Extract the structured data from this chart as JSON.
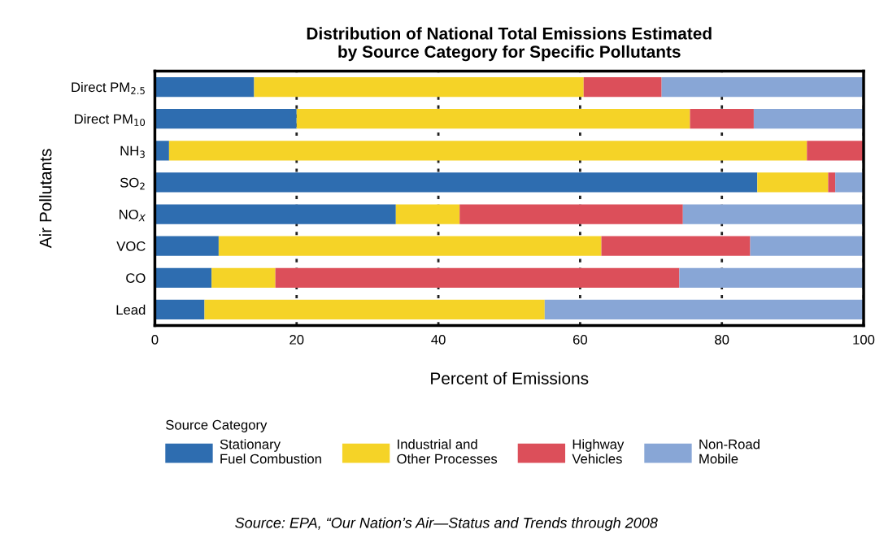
{
  "chart_data": {
    "type": "bar",
    "orientation": "horizontal",
    "stacked": true,
    "title": "Distribution of National Total Emissions Estimated\nby Source Category for Specific Pollutants",
    "xlabel": "Percent of Emissions",
    "ylabel": "Air Pollutants",
    "legend_title": "Source Category",
    "categories": [
      "Direct PM$_{2.5}$",
      "Direct PM$_{10}$",
      "NH$_{3}$",
      "SO$_{2}$",
      "NO$_{X}$",
      "VOC",
      "CO",
      "Lead"
    ],
    "series": [
      {
        "name": "Stationary\nFuel Combustion",
        "color": "#2e6db0",
        "values": [
          14,
          20,
          2,
          85,
          34,
          9,
          8,
          7
        ]
      },
      {
        "name": "Industrial and\nOther Processes",
        "color": "#f5d327",
        "values": [
          46.5,
          55.5,
          90,
          10,
          9,
          54,
          9,
          48
        ]
      },
      {
        "name": "Highway\nVehicles",
        "color": "#dc4f5a",
        "values": [
          11,
          9,
          8,
          1,
          31.5,
          21,
          57,
          0
        ]
      },
      {
        "name": "Non-Road\nMobile",
        "color": "#88a6d6",
        "values": [
          28.5,
          15.5,
          0,
          4,
          25.5,
          16,
          26,
          45
        ]
      }
    ],
    "xlim": [
      0,
      100
    ],
    "xticks": [
      0,
      20,
      40,
      60,
      80,
      100
    ],
    "grid": "x",
    "legend": "bottom",
    "annotations": [
      "Source: EPA, “Our Nation’s Air—Status and Trends through 2008"
    ]
  }
}
